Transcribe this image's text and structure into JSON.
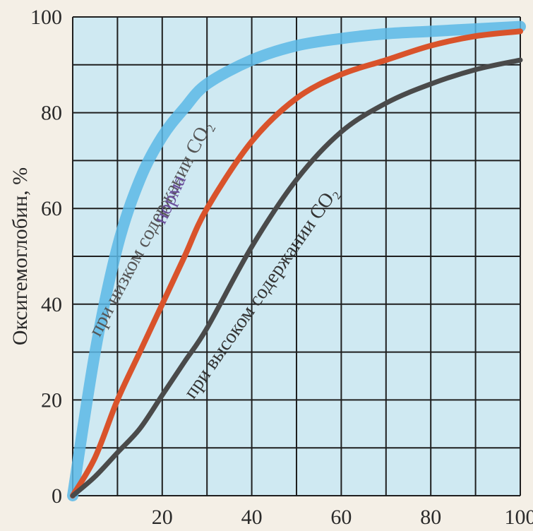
{
  "chart_data": {
    "type": "line",
    "title": "",
    "xlabel": "",
    "ylabel": "Оксигемоглобин, %",
    "xlim": [
      0,
      100
    ],
    "ylim": [
      0,
      100
    ],
    "x_ticks": [
      "20",
      "40",
      "60",
      "80",
      "100"
    ],
    "y_ticks": [
      "0",
      "20",
      "40",
      "60",
      "80",
      "100"
    ],
    "grid": true,
    "series": [
      {
        "name": "при низком содержании CO₂",
        "color": "#5cb8e6",
        "x": [
          0,
          5,
          10,
          15,
          20,
          25,
          30,
          40,
          50,
          60,
          70,
          80,
          90,
          100
        ],
        "y": [
          0,
          30,
          52,
          66,
          75,
          81,
          86,
          91,
          94,
          95.5,
          96.5,
          97,
          97.5,
          98
        ]
      },
      {
        "name": "норма",
        "color": "#d9532b",
        "x": [
          0,
          5,
          10,
          15,
          20,
          25,
          30,
          40,
          50,
          60,
          70,
          80,
          90,
          100
        ],
        "y": [
          0,
          8,
          20,
          30,
          40,
          50,
          60,
          74,
          83,
          88,
          91,
          94,
          96,
          97
        ]
      },
      {
        "name": "при высоком содержании CO₂",
        "color": "#4a4a4a",
        "x": [
          0,
          5,
          10,
          15,
          20,
          25,
          30,
          40,
          50,
          60,
          70,
          80,
          90,
          100
        ],
        "y": [
          0,
          4,
          9,
          14,
          21,
          28,
          35,
          52,
          66,
          76,
          82,
          86,
          89,
          91
        ]
      }
    ],
    "labels": {
      "low": "при низком содержании CO₂",
      "norm": "норма",
      "high": "при высоком содержании CO₂"
    }
  }
}
